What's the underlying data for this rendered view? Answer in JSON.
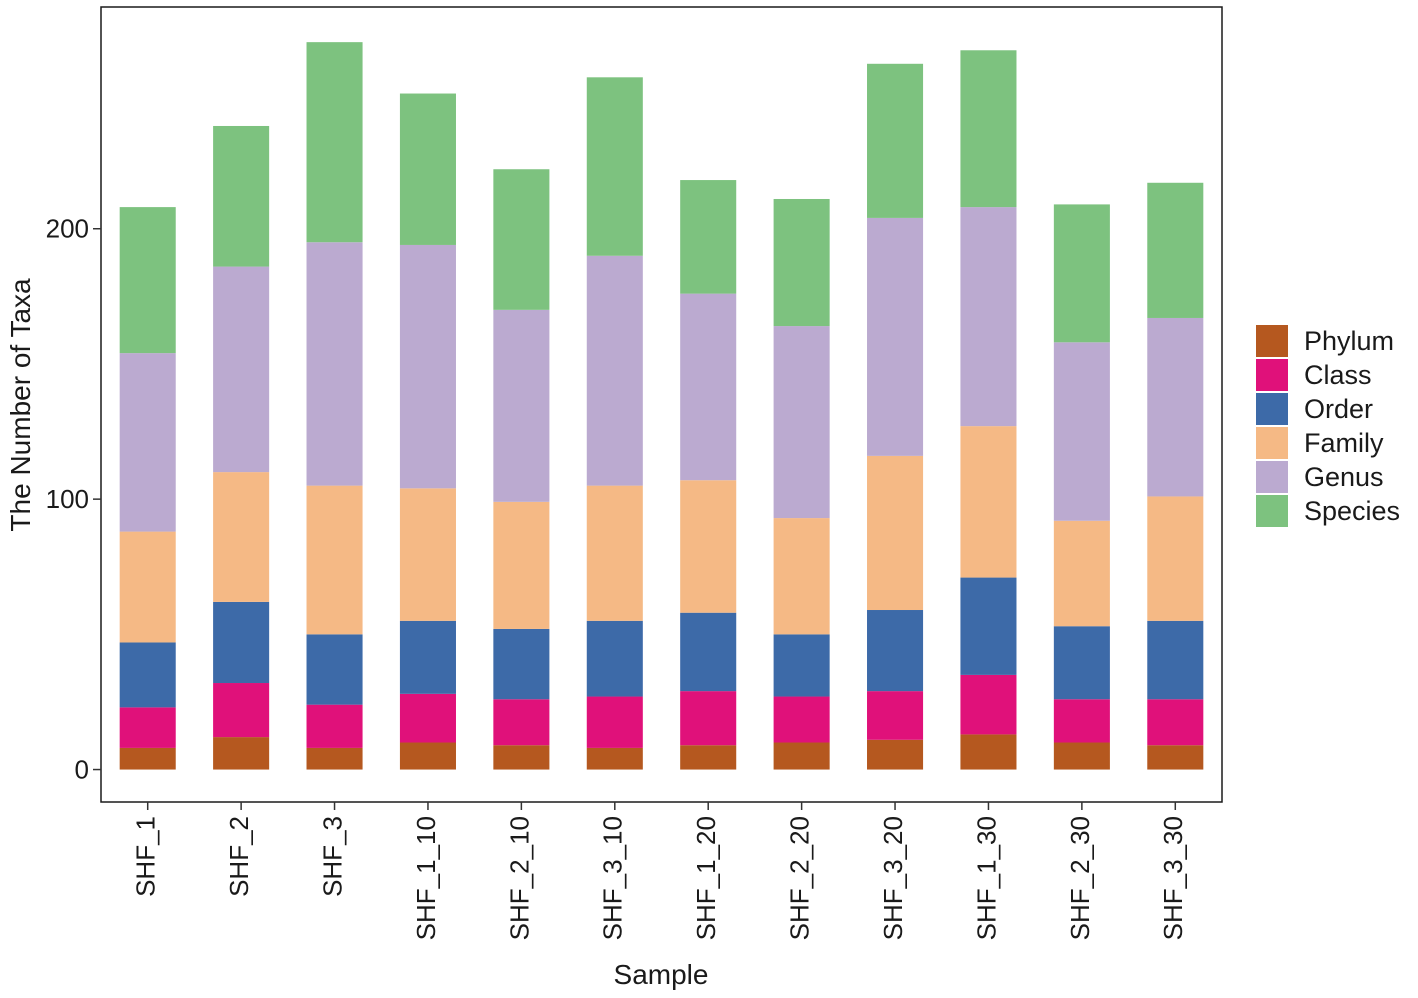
{
  "chart_data": {
    "type": "bar",
    "stacked": true,
    "xlabel": "Sample",
    "ylabel": "The Number of Taxa",
    "ylim": [
      -12,
      282
    ],
    "yticks": [
      0,
      100,
      200
    ],
    "legend_position": "right",
    "categories": [
      "SHF_1",
      "SHF_2",
      "SHF_3",
      "SHF_1_10",
      "SHF_2_10",
      "SHF_3_10",
      "SHF_1_20",
      "SHF_2_20",
      "SHF_3_20",
      "SHF_1_30",
      "SHF_2_30",
      "SHF_3_30"
    ],
    "series": [
      {
        "name": "Phylum",
        "color": "#B5581F",
        "values": [
          8,
          12,
          8,
          10,
          9,
          8,
          9,
          10,
          11,
          13,
          10,
          9
        ]
      },
      {
        "name": "Class",
        "color": "#E0117A",
        "values": [
          15,
          20,
          16,
          18,
          17,
          19,
          20,
          17,
          18,
          22,
          16,
          17
        ]
      },
      {
        "name": "Order",
        "color": "#3D6AA8",
        "values": [
          24,
          30,
          26,
          27,
          26,
          28,
          29,
          23,
          30,
          36,
          27,
          29
        ]
      },
      {
        "name": "Family",
        "color": "#F5B985",
        "values": [
          41,
          48,
          55,
          49,
          47,
          50,
          49,
          43,
          57,
          56,
          39,
          46
        ]
      },
      {
        "name": "Genus",
        "color": "#BBAAD0",
        "values": [
          66,
          76,
          90,
          90,
          71,
          85,
          69,
          71,
          88,
          81,
          66,
          66
        ]
      },
      {
        "name": "Species",
        "color": "#7DC27F",
        "values": [
          54,
          52,
          74,
          56,
          52,
          66,
          42,
          47,
          57,
          58,
          51,
          50
        ]
      }
    ]
  }
}
